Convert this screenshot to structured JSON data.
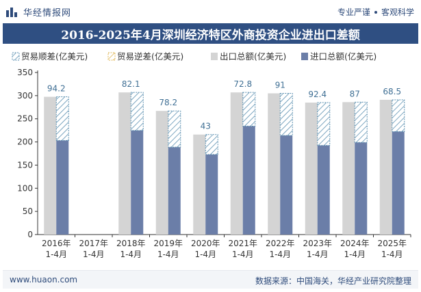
{
  "header": {
    "brand_name": "华经情报网",
    "tagline_left": "专业严谨",
    "tagline_right": "客观科学"
  },
  "colors": {
    "title_bar": "#2f4f82",
    "export_bar": "#d4d4d4",
    "import_bar": "#6b7ea8",
    "surplus_hatch": "#5a8fb0",
    "label": "#3f6f94"
  },
  "chart_data": {
    "type": "bar",
    "title": "2016-2025年4月深圳经济特区外商投资企业进出口差额",
    "categories": [
      "2016年\n1-4月",
      "2017年\n1-4月",
      "2018年\n1-4月",
      "2019年\n1-4月",
      "2020年\n1-4月",
      "2021年\n1-4月",
      "2022年\n1-4月",
      "2023年\n1-4月",
      "2024年\n1-4月",
      "2025年\n1-4月"
    ],
    "series": [
      {
        "name": "贸易顺差(亿美元)",
        "values": [
          94.2,
          null,
          82.1,
          78.2,
          43,
          72.8,
          91,
          92.4,
          87,
          68.5
        ]
      },
      {
        "name": "贸易逆差(亿美元)",
        "values": [
          null,
          null,
          null,
          null,
          null,
          null,
          null,
          null,
          null,
          null
        ]
      },
      {
        "name": "出口总额(亿美元)",
        "values": [
          297.5,
          null,
          307,
          267,
          216,
          307,
          305,
          285,
          286,
          291
        ]
      },
      {
        "name": "进口总额(亿美元)",
        "values": [
          203.3,
          null,
          224.9,
          188.8,
          173,
          234.2,
          214,
          192.6,
          199,
          222.5
        ]
      }
    ],
    "data_labels": [
      "94.2",
      "",
      "82.1",
      "78.2",
      "43",
      "72.8",
      "91",
      "92.4",
      "87",
      "68.5"
    ],
    "yticks": [
      0,
      50,
      100,
      150,
      200,
      250,
      300,
      350
    ],
    "ylim": [
      0,
      350
    ],
    "xlabel": "",
    "ylabel": "",
    "legend_position": "top",
    "grid": false
  },
  "footer": {
    "url": "www.huaon.com",
    "source": "数据来源：中国海关，华经产业研究院整理"
  }
}
